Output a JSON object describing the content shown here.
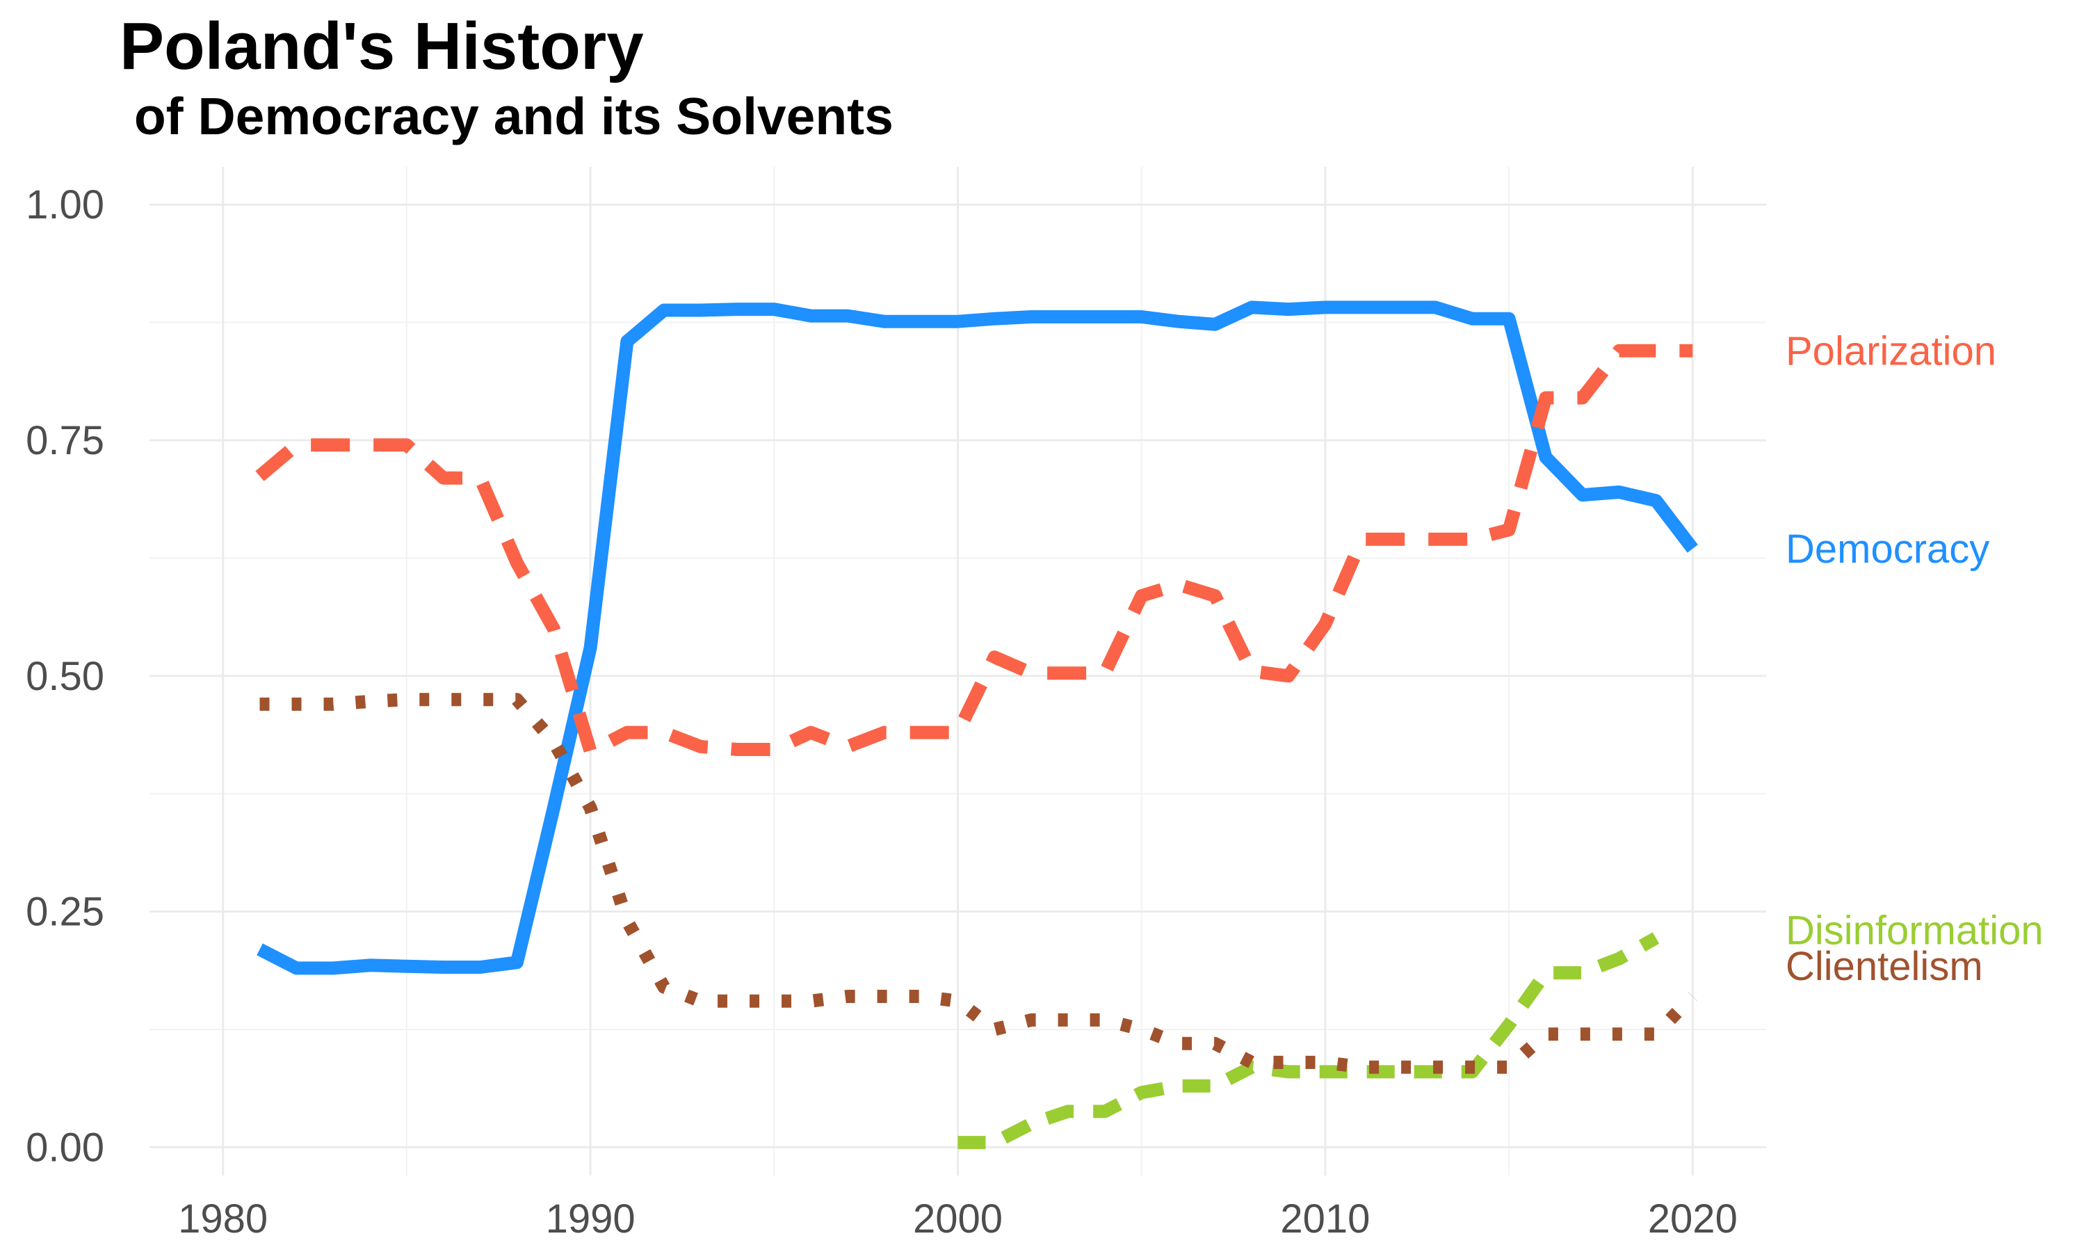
{
  "chart_data": {
    "type": "line",
    "title": "Poland's History",
    "subtitle": " of Democracy and its Solvents",
    "xlabel": "",
    "ylabel": "",
    "xlim": [
      1978,
      2022
    ],
    "ylim": [
      -0.03,
      1.04
    ],
    "x_ticks": [
      1980,
      1990,
      2000,
      2010,
      2020
    ],
    "y_ticks": [
      0.0,
      0.25,
      0.5,
      0.75,
      1.0
    ],
    "x_tick_labels": [
      "1980",
      "1990",
      "2000",
      "2010",
      "2020"
    ],
    "y_tick_labels": [
      "0.00",
      "0.25",
      "0.50",
      "0.75",
      "1.00"
    ],
    "grid": true,
    "legend": "direct labels at right end of each line",
    "series": [
      {
        "name": "Democracy",
        "color": "#1e90ff",
        "dash": "solid",
        "x": [
          1981,
          1982,
          1983,
          1984,
          1985,
          1986,
          1987,
          1988,
          1989,
          1990,
          1991,
          1992,
          1993,
          1994,
          1995,
          1996,
          1997,
          1998,
          1999,
          2000,
          2001,
          2002,
          2003,
          2004,
          2005,
          2006,
          2007,
          2008,
          2009,
          2010,
          2011,
          2012,
          2013,
          2014,
          2015,
          2016,
          2017,
          2018,
          2019,
          2020
        ],
        "values": [
          0.21,
          0.19,
          0.19,
          0.193,
          0.192,
          0.191,
          0.191,
          0.196,
          0.36,
          0.53,
          0.855,
          0.888,
          0.888,
          0.889,
          0.889,
          0.882,
          0.882,
          0.876,
          0.876,
          0.876,
          0.879,
          0.881,
          0.881,
          0.881,
          0.881,
          0.876,
          0.873,
          0.891,
          0.889,
          0.891,
          0.891,
          0.891,
          0.891,
          0.879,
          0.879,
          0.732,
          0.692,
          0.695,
          0.686,
          0.635
        ]
      },
      {
        "name": "Polarization",
        "color": "#fa6347",
        "dash": "long",
        "x": [
          1981,
          1982,
          1983,
          1984,
          1985,
          1986,
          1987,
          1988,
          1989,
          1990,
          1991,
          1992,
          1993,
          1994,
          1995,
          1996,
          1997,
          1998,
          1999,
          2000,
          2001,
          2002,
          2003,
          2004,
          2005,
          2006,
          2007,
          2008,
          2009,
          2010,
          2011,
          2012,
          2013,
          2014,
          2015,
          2016,
          2017,
          2018,
          2019,
          2020
        ],
        "values": [
          0.712,
          0.745,
          0.745,
          0.745,
          0.745,
          0.71,
          0.71,
          0.62,
          0.55,
          0.42,
          0.44,
          0.44,
          0.425,
          0.422,
          0.422,
          0.44,
          0.425,
          0.44,
          0.44,
          0.44,
          0.52,
          0.503,
          0.503,
          0.503,
          0.585,
          0.597,
          0.585,
          0.505,
          0.5,
          0.555,
          0.645,
          0.645,
          0.645,
          0.645,
          0.655,
          0.795,
          0.795,
          0.845,
          0.845,
          0.845
        ]
      },
      {
        "name": "Disinformation",
        "color": "#9acd32",
        "dash": "medium",
        "x": [
          2000,
          2001,
          2002,
          2003,
          2004,
          2005,
          2006,
          2007,
          2008,
          2009,
          2010,
          2011,
          2012,
          2013,
          2014,
          2015,
          2016,
          2017,
          2018,
          2019
        ],
        "values": [
          0.005,
          0.005,
          0.025,
          0.038,
          0.038,
          0.058,
          0.065,
          0.065,
          0.085,
          0.08,
          0.08,
          0.08,
          0.08,
          0.08,
          0.08,
          0.13,
          0.185,
          0.185,
          0.2,
          0.222
        ]
      },
      {
        "name": "Clientelism",
        "color": "#a0522d",
        "dash": "dotted",
        "x": [
          1981,
          1982,
          1983,
          1984,
          1985,
          1986,
          1987,
          1988,
          1989,
          1990,
          1991,
          1992,
          1993,
          1994,
          1995,
          1996,
          1997,
          1998,
          1999,
          2000,
          2001,
          2002,
          2003,
          2004,
          2005,
          2006,
          2007,
          2008,
          2009,
          2010,
          2011,
          2012,
          2013,
          2014,
          2015,
          2016,
          2017,
          2018,
          2019,
          2020
        ],
        "values": [
          0.47,
          0.47,
          0.47,
          0.473,
          0.475,
          0.475,
          0.475,
          0.475,
          0.43,
          0.36,
          0.24,
          0.17,
          0.155,
          0.155,
          0.155,
          0.155,
          0.16,
          0.16,
          0.16,
          0.155,
          0.125,
          0.135,
          0.135,
          0.135,
          0.125,
          0.11,
          0.11,
          0.09,
          0.09,
          0.09,
          0.085,
          0.085,
          0.085,
          0.085,
          0.085,
          0.12,
          0.12,
          0.12,
          0.12,
          0.16
        ]
      }
    ]
  }
}
